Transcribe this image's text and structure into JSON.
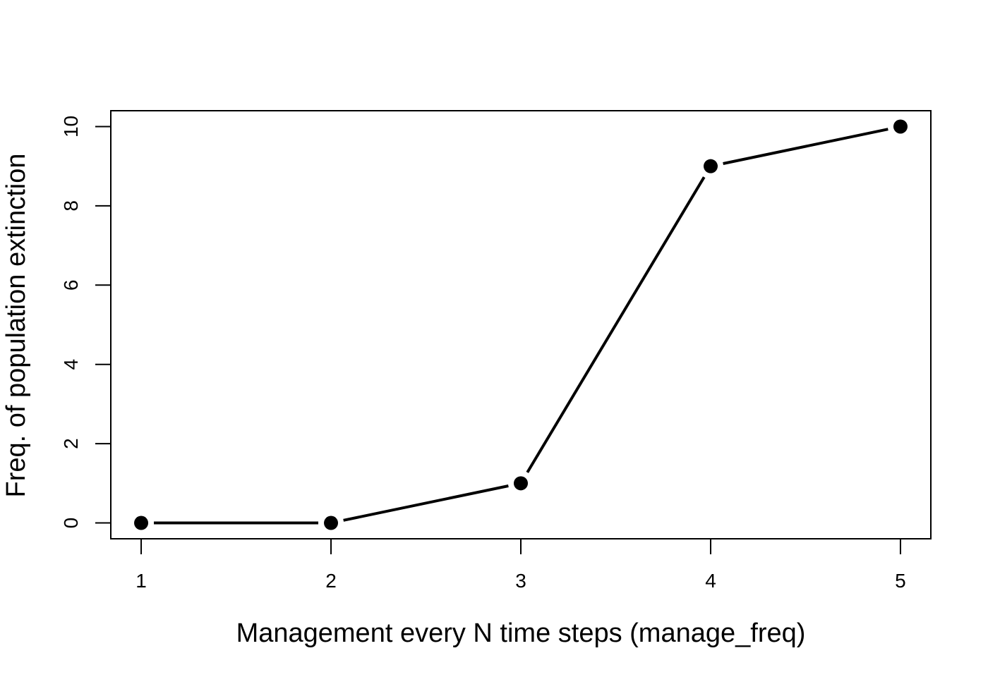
{
  "chart_data": {
    "type": "line",
    "title": "",
    "xlabel": "Management every N time steps (manage_freq)",
    "ylabel": "Freq. of population extinction",
    "x": [
      1,
      2,
      3,
      4,
      5
    ],
    "series": [
      {
        "values": [
          0,
          0,
          1,
          9,
          10
        ]
      }
    ],
    "xlim": [
      0.84,
      5.16
    ],
    "ylim": [
      -0.4,
      10.4
    ],
    "xticks": [
      1,
      2,
      3,
      4,
      5
    ],
    "yticks": [
      0,
      2,
      4,
      6,
      8,
      10
    ],
    "xtick_labels": [
      "1",
      "2",
      "3",
      "4",
      "5"
    ],
    "ytick_labels": [
      "0",
      "2",
      "4",
      "6",
      "8",
      "10"
    ],
    "grid": false,
    "legend": "none",
    "line_color": "#000000",
    "marker": "filled-circle"
  }
}
